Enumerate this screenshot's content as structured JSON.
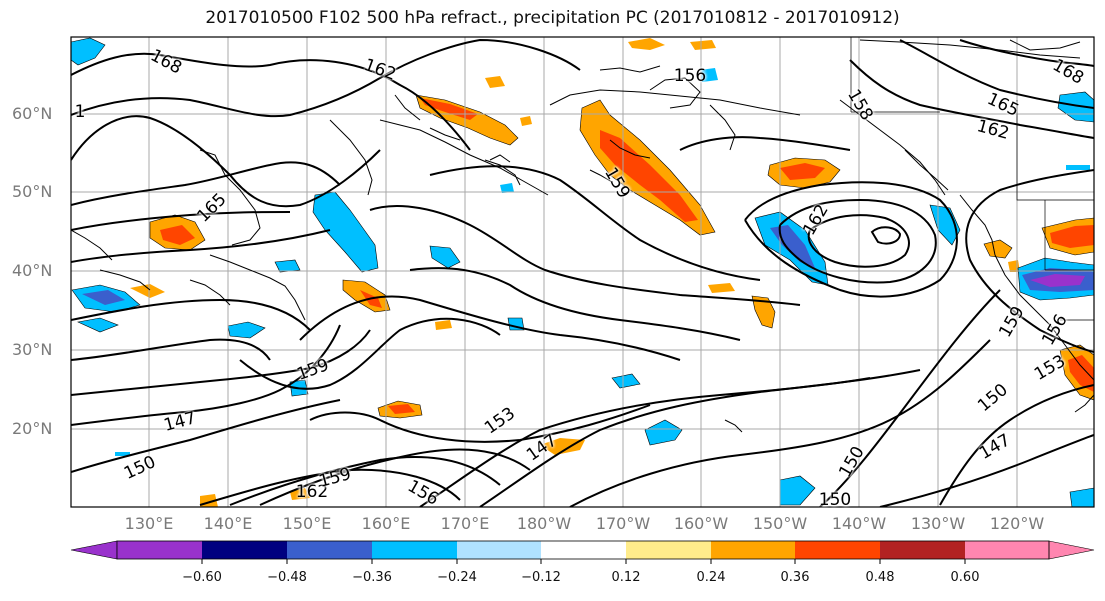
{
  "title": "2017010500 F102 500 hPa refract., precipitation PC (2017010812 - 2017010912)",
  "map": {
    "lat_labels": [
      "60°N",
      "50°N",
      "40°N",
      "30°N",
      "20°N"
    ],
    "lon_labels": [
      "130°E",
      "140°E",
      "150°E",
      "160°E",
      "170°E",
      "180°W",
      "170°W",
      "160°W",
      "150°W",
      "140°W",
      "130°W",
      "120°W"
    ],
    "contour_labels": [
      "168",
      "162",
      "1",
      "165",
      "159",
      "147",
      "150",
      "162",
      "159",
      "156",
      "153",
      "147",
      "159",
      "162",
      "158",
      "165",
      "162",
      "168",
      "159",
      "156",
      "153",
      "150",
      "147",
      "150",
      "150",
      "156"
    ]
  },
  "colorbar": {
    "ticks": [
      "−0.60",
      "−0.48",
      "−0.36",
      "−0.24",
      "−0.12",
      "0.12",
      "0.24",
      "0.36",
      "0.48",
      "0.60"
    ],
    "colors": [
      "#9932cc",
      "#000080",
      "#3a5fcd",
      "#00bfff",
      "#b0e2ff",
      "#ffffff",
      "#ffec8b",
      "#ffa500",
      "#ff4500",
      "#b22222",
      "#ff86b0"
    ]
  }
}
